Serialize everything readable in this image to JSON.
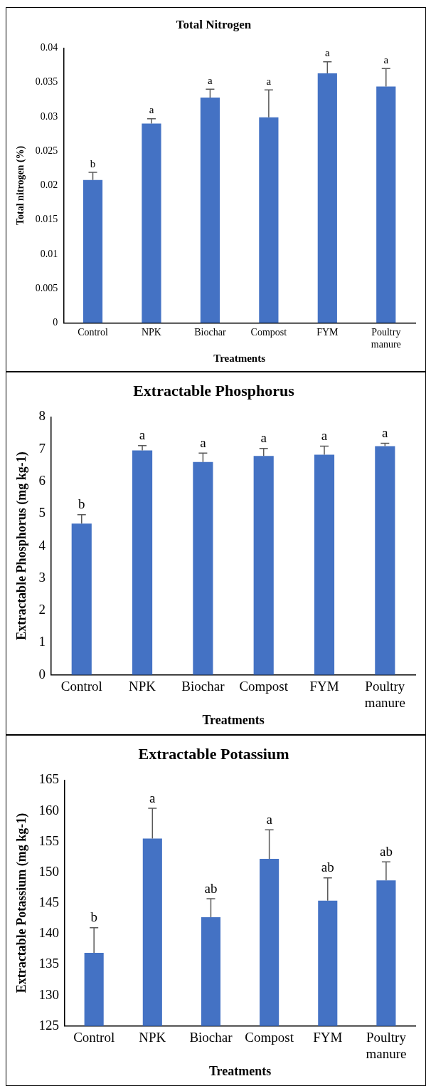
{
  "chart_data": [
    {
      "type": "bar",
      "title": "Total Nitrogen",
      "xlabel": "Treatments",
      "ylabel": "Total nitrogen (%)",
      "categories": [
        "Control",
        "NPK",
        "Biochar",
        "Compost",
        "FYM",
        "Poultry manure"
      ],
      "color": "#4472c4",
      "values": [
        0.0208,
        0.029,
        0.0328,
        0.0299,
        0.0363,
        0.0344
      ],
      "errors": [
        [
          0.0208,
          0.0219
        ],
        [
          0.029,
          0.0297
        ],
        [
          0.0328,
          0.034
        ],
        [
          0.0299,
          0.0339
        ],
        [
          0.0363,
          0.038
        ],
        [
          0.0344,
          0.037
        ]
      ],
      "ylim": [
        0,
        0.04
      ],
      "yticks": [
        0,
        0.005,
        0.01,
        0.015,
        0.02,
        0.025,
        0.03,
        0.035,
        0.04
      ],
      "grid": false,
      "legend": false,
      "annotations": [
        {
          "text": "b",
          "x": "Control",
          "y": 0.0219
        },
        {
          "text": "a",
          "x": "NPK",
          "y": 0.0297
        },
        {
          "text": "a",
          "x": "Biochar",
          "y": 0.034
        },
        {
          "text": "a",
          "x": "Compost",
          "y": 0.0339
        },
        {
          "text": "a",
          "x": "FYM",
          "y": 0.038
        },
        {
          "text": "a",
          "x": "Poultry manure",
          "y": 0.037
        }
      ]
    },
    {
      "type": "bar",
      "title": "Extractable Phosphorus",
      "xlabel": "Treatments",
      "ylabel": "Extractable Phosphorus (mg kg-1)",
      "categories": [
        "Control",
        "NPK",
        "Biochar",
        "Compost",
        "FYM",
        "Poultry manure"
      ],
      "color": "#4472c4",
      "values": [
        4.69,
        6.96,
        6.6,
        6.79,
        6.83,
        7.09
      ],
      "errors": [
        [
          4.69,
          4.97
        ],
        [
          6.96,
          7.11
        ],
        [
          6.6,
          6.88
        ],
        [
          6.79,
          7.02
        ],
        [
          6.83,
          7.09
        ],
        [
          7.09,
          7.18
        ]
      ],
      "ylim": [
        0,
        8
      ],
      "yticks": [
        0,
        1,
        2,
        3,
        4,
        5,
        6,
        7,
        8
      ],
      "grid": false,
      "legend": false,
      "annotations": [
        {
          "text": "b",
          "x": "Control",
          "y": 4.97
        },
        {
          "text": "a",
          "x": "NPK",
          "y": 7.11
        },
        {
          "text": "a",
          "x": "Biochar",
          "y": 6.88
        },
        {
          "text": "a",
          "x": "Compost",
          "y": 7.02
        },
        {
          "text": "a",
          "x": "FYM",
          "y": 7.09
        },
        {
          "text": "a",
          "x": "Poultry manure",
          "y": 7.18
        }
      ]
    },
    {
      "type": "bar",
      "title": "Extractable Potassium",
      "xlabel": "Treatments",
      "ylabel": "Extractable Potassium (mg kg-1)",
      "categories": [
        "Control",
        "NPK",
        "Biochar",
        "Compost",
        "FYM",
        "Poultry manure"
      ],
      "color": "#4472c4",
      "values": [
        136.9,
        155.5,
        142.7,
        152.2,
        145.4,
        148.7
      ],
      "errors": [
        [
          136.9,
          141
        ],
        [
          155.5,
          160.4
        ],
        [
          142.7,
          145.7
        ],
        [
          152.2,
          156.9
        ],
        [
          145.4,
          149.1
        ],
        [
          148.7,
          151.7
        ]
      ],
      "ylim": [
        125,
        165
      ],
      "yticks": [
        125,
        130,
        135,
        140,
        145,
        150,
        155,
        160,
        165
      ],
      "grid": false,
      "legend": false,
      "annotations": [
        {
          "text": "b",
          "x": "Control",
          "y": 141
        },
        {
          "text": "a",
          "x": "NPK",
          "y": 160.4
        },
        {
          "text": "ab",
          "x": "Biochar",
          "y": 145.7
        },
        {
          "text": "a",
          "x": "Compost",
          "y": 156.9
        },
        {
          "text": "ab",
          "x": "FYM",
          "y": 149.1
        },
        {
          "text": "ab",
          "x": "Poultry manure",
          "y": 151.7
        }
      ]
    }
  ]
}
